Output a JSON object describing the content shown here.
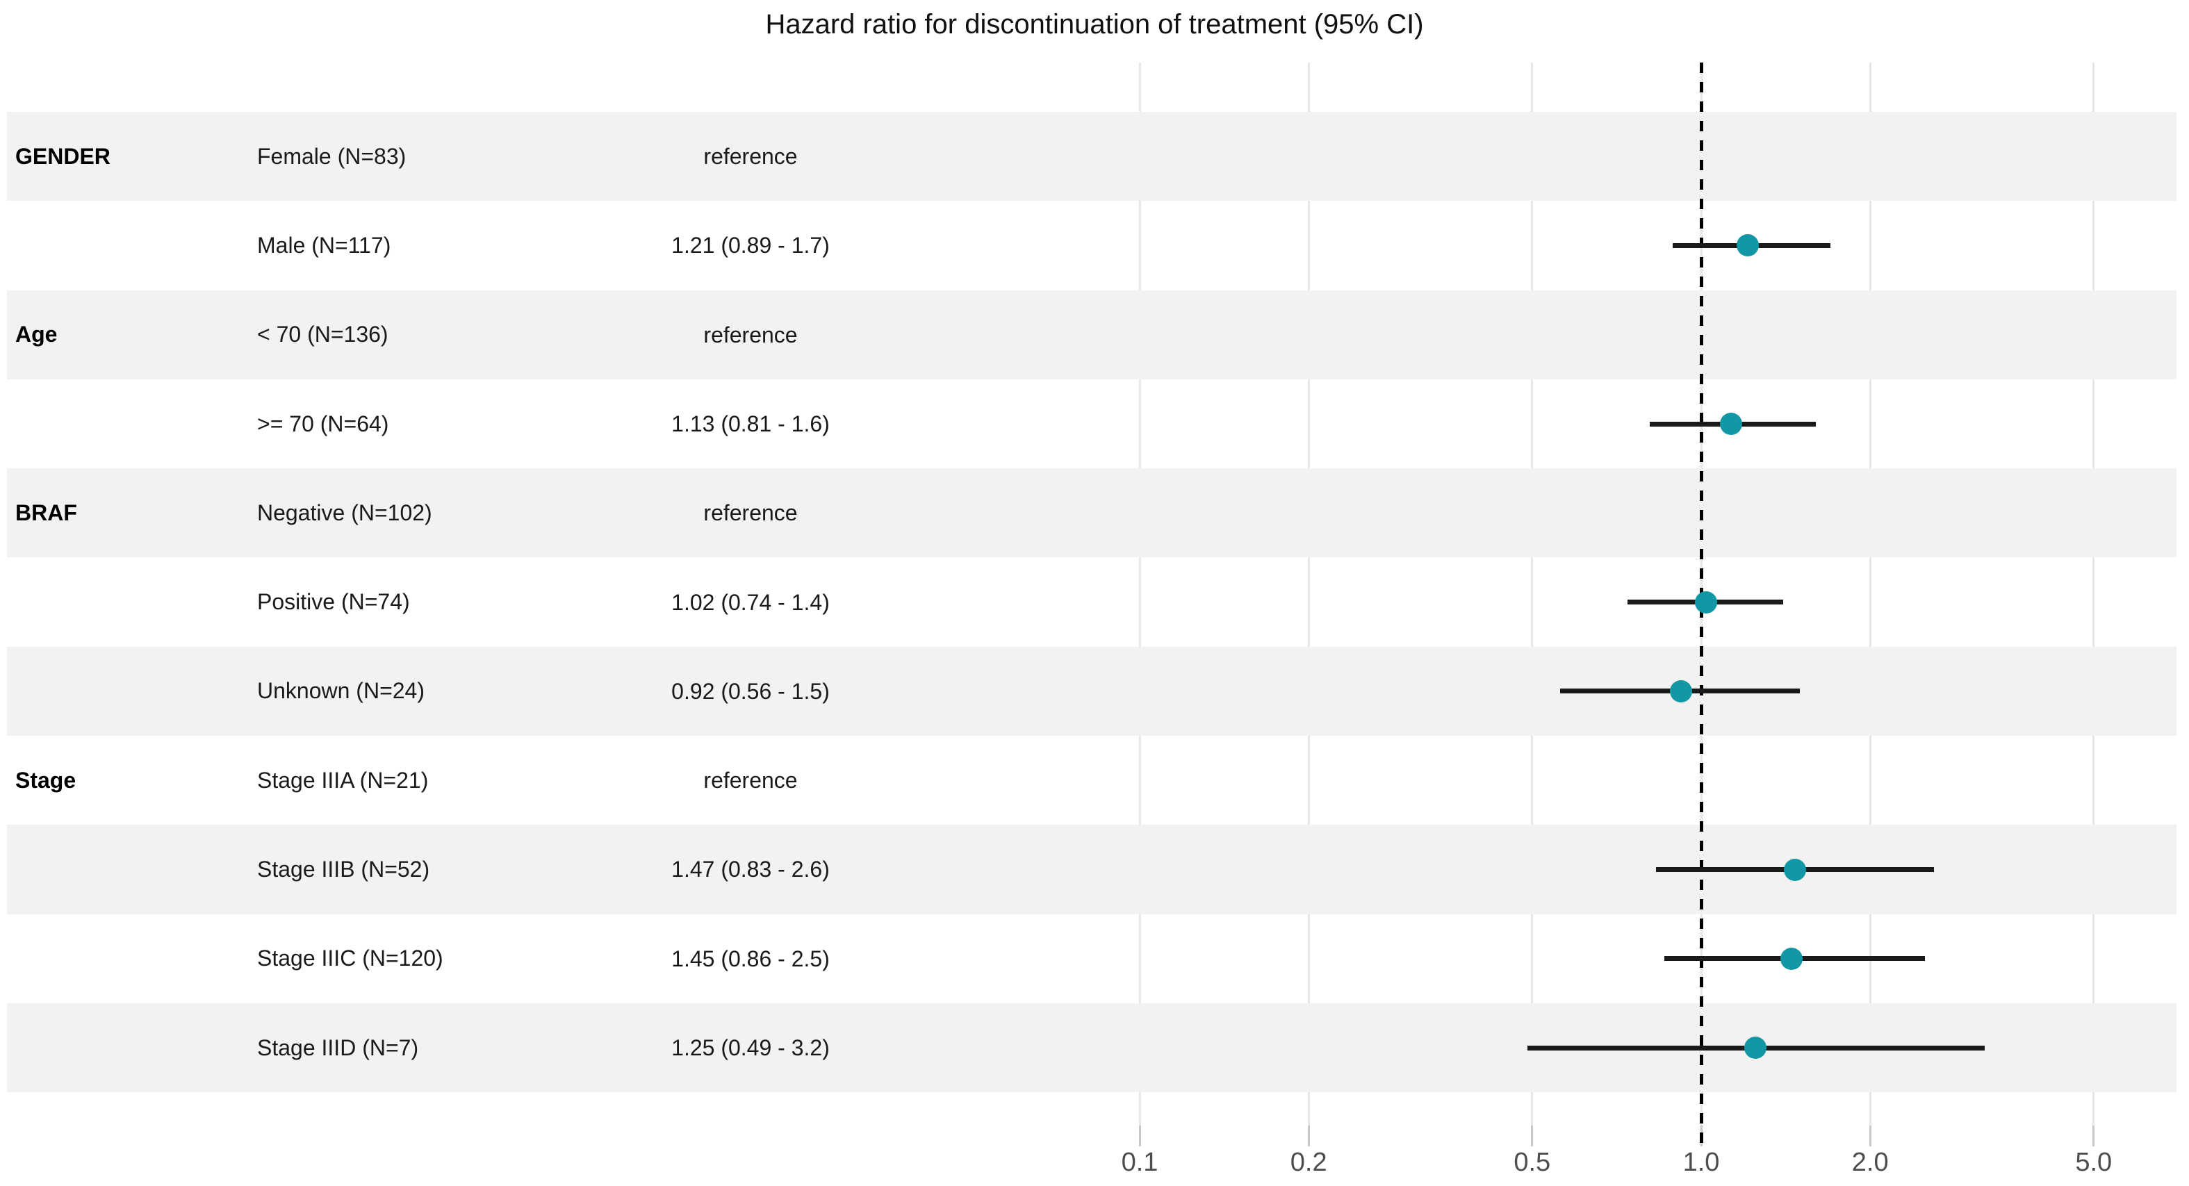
{
  "chart_data": {
    "type": "scatter",
    "subtype": "forest-plot",
    "title": "Hazard ratio for discontinuation of treatment (95% CI)",
    "x_axis": {
      "scale": "log10",
      "tick_labels": [
        "0.1",
        "0.2",
        "0.5",
        "1.0",
        "2.0",
        "5.0"
      ],
      "tick_values": [
        0.1,
        0.2,
        0.5,
        1.0,
        2.0,
        5.0
      ],
      "reference_line": 1.0,
      "range": [
        0.09,
        6.5
      ],
      "grid": true
    },
    "legend": null,
    "colors": {
      "point": "#1397A4",
      "ci_line": "#1a1a1a",
      "stripe": "#f2f2f2",
      "gridline": "#e7e7e7",
      "tick_label": "#4d4d4d",
      "reference_line": "#000000"
    },
    "groups": [
      {
        "name": "GENDER",
        "items": [
          {
            "label": "Female (N=83)",
            "estimate_text": "reference",
            "hr": null,
            "ci_low": null,
            "ci_high": null
          },
          {
            "label": "Male (N=117)",
            "estimate_text": "1.21 (0.89 - 1.7)",
            "hr": 1.21,
            "ci_low": 0.89,
            "ci_high": 1.7
          }
        ]
      },
      {
        "name": "Age",
        "items": [
          {
            "label": "< 70 (N=136)",
            "estimate_text": "reference",
            "hr": null,
            "ci_low": null,
            "ci_high": null
          },
          {
            "label": ">= 70 (N=64)",
            "estimate_text": "1.13 (0.81 - 1.6)",
            "hr": 1.13,
            "ci_low": 0.81,
            "ci_high": 1.6
          }
        ]
      },
      {
        "name": "BRAF",
        "items": [
          {
            "label": "Negative (N=102)",
            "estimate_text": "reference",
            "hr": null,
            "ci_low": null,
            "ci_high": null
          },
          {
            "label": "Positive (N=74)",
            "estimate_text": "1.02 (0.74 - 1.4)",
            "hr": 1.02,
            "ci_low": 0.74,
            "ci_high": 1.4
          },
          {
            "label": "Unknown (N=24)",
            "estimate_text": "0.92 (0.56 - 1.5)",
            "hr": 0.92,
            "ci_low": 0.56,
            "ci_high": 1.5
          }
        ]
      },
      {
        "name": "Stage",
        "items": [
          {
            "label": "Stage IIIA (N=21)",
            "estimate_text": "reference",
            "hr": null,
            "ci_low": null,
            "ci_high": null
          },
          {
            "label": "Stage IIIB (N=52)",
            "estimate_text": "1.47 (0.83 - 2.6)",
            "hr": 1.47,
            "ci_low": 0.83,
            "ci_high": 2.6
          },
          {
            "label": "Stage IIIC (N=120)",
            "estimate_text": "1.45 (0.86 - 2.5)",
            "hr": 1.45,
            "ci_low": 0.86,
            "ci_high": 2.5
          },
          {
            "label": "Stage IIID (N=7)",
            "estimate_text": "1.25 (0.49 - 3.2)",
            "hr": 1.25,
            "ci_low": 0.49,
            "ci_high": 3.2
          }
        ]
      }
    ]
  }
}
